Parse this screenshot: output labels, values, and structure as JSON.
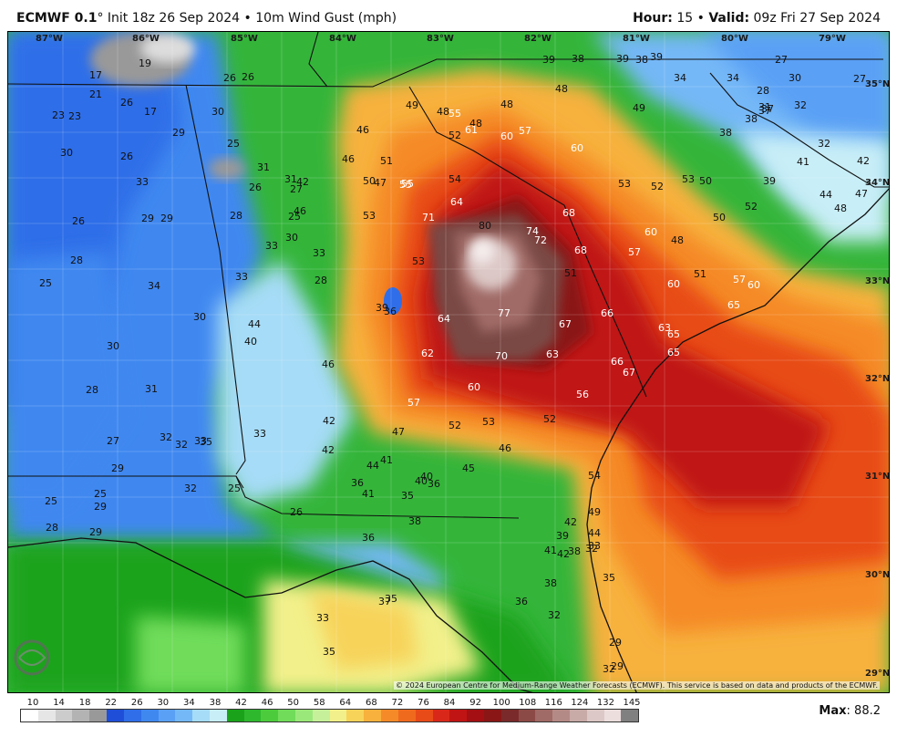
{
  "header": {
    "model": "ECMWF 0.1",
    "init": "Init 18z 26 Sep 2024",
    "bullet": "•",
    "product": "10m Wind Gust (mph)",
    "hour_label": "Hour:",
    "hour_value": "15",
    "valid_label": "Valid:",
    "valid_value": "09z Fri 27 Sep 2024"
  },
  "map": {
    "longitude_labels": [
      "87°W",
      "86°W",
      "85°W",
      "84°W",
      "83°W",
      "82°W",
      "81°W",
      "80°W",
      "79°W"
    ],
    "latitude_labels": [
      "35°N",
      "34°N",
      "33°N",
      "32°N",
      "31°N",
      "30°N",
      "29°N"
    ],
    "gust_values": [
      "19",
      "17",
      "21",
      "23",
      "23",
      "17",
      "26",
      "26",
      "29",
      "30",
      "25",
      "26",
      "26",
      "31",
      "33",
      "26",
      "29",
      "29",
      "28",
      "26",
      "28",
      "30",
      "33",
      "33",
      "25",
      "34",
      "30",
      "33",
      "28",
      "30",
      "36",
      "39",
      "44",
      "40",
      "46",
      "30",
      "28",
      "31",
      "25",
      "27",
      "31",
      "32",
      "32",
      "33",
      "35",
      "33",
      "27",
      "29",
      "32",
      "25",
      "25",
      "25",
      "29",
      "26",
      "28",
      "29",
      "36",
      "35",
      "36",
      "37",
      "35",
      "32",
      "33",
      "32",
      "29",
      "35",
      "36",
      "38",
      "38",
      "39",
      "42",
      "41",
      "44",
      "40",
      "45",
      "46",
      "41",
      "42",
      "47",
      "42",
      "46",
      "42",
      "46",
      "46",
      "49",
      "48",
      "48",
      "48",
      "48",
      "39",
      "38",
      "39",
      "38",
      "39",
      "34",
      "34",
      "30",
      "28",
      "27",
      "27",
      "32",
      "31",
      "37",
      "37",
      "38",
      "38",
      "41",
      "39",
      "32",
      "42",
      "44",
      "47",
      "48",
      "52",
      "50",
      "53",
      "52",
      "53",
      "57",
      "51",
      "48",
      "50",
      "49",
      "52",
      "55",
      "61",
      "60",
      "57",
      "60",
      "54",
      "47",
      "50",
      "51",
      "55",
      "55",
      "53",
      "64",
      "71",
      "80",
      "74",
      "72",
      "68",
      "60",
      "68",
      "53",
      "51",
      "60",
      "57",
      "60",
      "65",
      "63",
      "65",
      "65",
      "66",
      "67",
      "67",
      "66",
      "63",
      "70",
      "77",
      "64",
      "62",
      "60",
      "57",
      "52",
      "53",
      "52",
      "56",
      "54",
      "49",
      "44",
      "42",
      "41",
      "40",
      "38",
      "36",
      "33",
      "35",
      "29",
      "32"
    ]
  },
  "colorbar": {
    "labels": [
      "10",
      "14",
      "18",
      "22",
      "26",
      "30",
      "34",
      "38",
      "42",
      "46",
      "50",
      "58",
      "64",
      "68",
      "72",
      "76",
      "84",
      "92",
      "100",
      "108",
      "116",
      "124",
      "132",
      "145"
    ],
    "colors": [
      "#ffffff",
      "#e6e6e6",
      "#cccccc",
      "#b3b3b3",
      "#999999",
      "#1f4fd8",
      "#2f6ee8",
      "#3f88f0",
      "#5aa0f5",
      "#74b8f7",
      "#a6dcf7",
      "#c8eef7",
      "#1aa31a",
      "#2eb82e",
      "#4ccc3c",
      "#70dc5a",
      "#9be87a",
      "#c7f09a",
      "#f2f08a",
      "#f7d35a",
      "#f7b13c",
      "#f58a28",
      "#f06a1e",
      "#e84b18",
      "#d9281a",
      "#c01414",
      "#a30f12",
      "#8a1616",
      "#7a2a2a",
      "#8c4a46",
      "#a06a66",
      "#b48a86",
      "#c8aaa6",
      "#dcc8c6",
      "#ecdedd",
      "#808080"
    ]
  },
  "max": {
    "label": "Max",
    "value": "88.2"
  },
  "copyright": "© 2024 European Centre for Medium-Range Weather Forecasts (ECMWF). This service is based on data and products of the ECMWF.",
  "logo": {
    "name": "WeatherBELL"
  }
}
